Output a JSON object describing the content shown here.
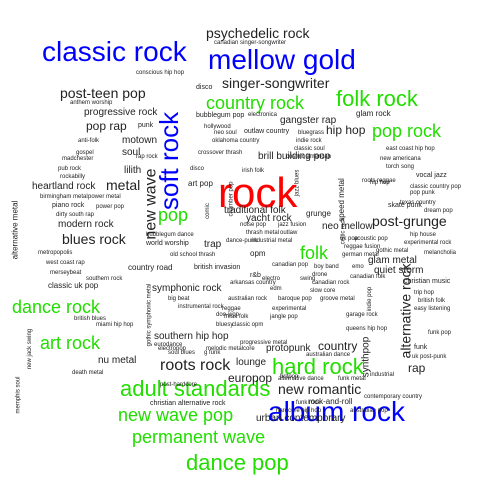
{
  "colors": {
    "dark": "#222222",
    "blue": "#0000ff",
    "green": "#22dd00",
    "red": "#ff0000"
  },
  "words": [
    {
      "text": "rock",
      "size": 12,
      "color": "red"
    },
    {
      "text": "classic rock",
      "size": 11,
      "color": "blue"
    },
    {
      "text": "mellow gold",
      "size": 11,
      "color": "blue"
    },
    {
      "text": "album rock",
      "size": 11,
      "color": "blue"
    },
    {
      "text": "soft rock",
      "size": 10,
      "color": "blue",
      "rot": true
    },
    {
      "text": "folk rock",
      "size": 9,
      "color": "green"
    },
    {
      "text": "country rock",
      "size": 8,
      "color": "green"
    },
    {
      "text": "pop rock",
      "size": 8,
      "color": "green"
    },
    {
      "text": "dance rock",
      "size": 8,
      "color": "green"
    },
    {
      "text": "art rock",
      "size": 8,
      "color": "green"
    },
    {
      "text": "hard rock",
      "size": 9,
      "color": "green"
    },
    {
      "text": "adult standards",
      "size": 9,
      "color": "green"
    },
    {
      "text": "new wave pop",
      "size": 8,
      "color": "green"
    },
    {
      "text": "permanent wave",
      "size": 8,
      "color": "green"
    },
    {
      "text": "dance pop",
      "size": 9,
      "color": "green"
    },
    {
      "text": "pop",
      "size": 8,
      "color": "green"
    },
    {
      "text": "folk",
      "size": 8,
      "color": "green"
    },
    {
      "text": "psychedelic rock",
      "size": 6
    },
    {
      "text": "canadian singer-songwriter",
      "size": 1
    },
    {
      "text": "singer-songwriter",
      "size": 6
    },
    {
      "text": "conscious hip hop",
      "size": 1
    },
    {
      "text": "post-teen pop",
      "size": 6
    },
    {
      "text": "anthem worship",
      "size": 1
    },
    {
      "text": "progressive rock",
      "size": 4
    },
    {
      "text": "pop rap",
      "size": 5
    },
    {
      "text": "punk",
      "size": 2
    },
    {
      "text": "anti-folk",
      "size": 1
    },
    {
      "text": "motown",
      "size": 4
    },
    {
      "text": "gospel",
      "size": 1
    },
    {
      "text": "madchester",
      "size": 1
    },
    {
      "text": "rap rock",
      "size": 1
    },
    {
      "text": "soul",
      "size": 4
    },
    {
      "text": "pub rock",
      "size": 1
    },
    {
      "text": "rockabilly",
      "size": 1
    },
    {
      "text": "lilith",
      "size": 4
    },
    {
      "text": "metal",
      "size": 6
    },
    {
      "text": "heartland rock",
      "size": 4
    },
    {
      "text": "birmingham metal",
      "size": 1
    },
    {
      "text": "power metal",
      "size": 1
    },
    {
      "text": "piano rock",
      "size": 2
    },
    {
      "text": "power pop",
      "size": 1
    },
    {
      "text": "dirty south rap",
      "size": 1
    },
    {
      "text": "modern rock",
      "size": 4
    },
    {
      "text": "blues rock",
      "size": 6
    },
    {
      "text": "alternative metal",
      "size": 3,
      "rot": true
    },
    {
      "text": "new wave",
      "size": 7,
      "rot": true
    },
    {
      "text": "disco",
      "size": 2
    },
    {
      "text": "bubblegum pop",
      "size": 2
    },
    {
      "text": "hollywood",
      "size": 1
    },
    {
      "text": "electronica",
      "size": 1
    },
    {
      "text": "gangster rap",
      "size": 4
    },
    {
      "text": "outlaw country",
      "size": 2
    },
    {
      "text": "bluegrass",
      "size": 1
    },
    {
      "text": "oklahoma country",
      "size": 1
    },
    {
      "text": "indie rock",
      "size": 1
    },
    {
      "text": "classic soul",
      "size": 1
    },
    {
      "text": "neo soul",
      "size": 1
    },
    {
      "text": "glam rock",
      "size": 3
    },
    {
      "text": "hip hop",
      "size": 5
    },
    {
      "text": "east coast hip hop",
      "size": 1
    },
    {
      "text": "cosmic american",
      "size": 1
    },
    {
      "text": "new americana",
      "size": 1
    },
    {
      "text": "torch song",
      "size": 1
    },
    {
      "text": "brill building pop",
      "size": 4
    },
    {
      "text": "crossover thrash",
      "size": 1
    },
    {
      "text": "art pop",
      "size": 3
    },
    {
      "text": "disco",
      "size": 1
    },
    {
      "text": "trap",
      "size": 4
    },
    {
      "text": "traditional folk",
      "size": 4
    },
    {
      "text": "yacht rock",
      "size": 4
    },
    {
      "text": "post-grunge",
      "size": 6
    },
    {
      "text": "neo mellow",
      "size": 4
    },
    {
      "text": "grunge",
      "size": 3
    },
    {
      "text": "hip hop",
      "size": 1
    },
    {
      "text": "vocal jazz",
      "size": 2
    },
    {
      "text": "classic country pop",
      "size": 1
    },
    {
      "text": "dream pop",
      "size": 1
    },
    {
      "text": "pop punk",
      "size": 1
    },
    {
      "text": "roots reggae",
      "size": 1
    },
    {
      "text": "speed metal",
      "size": 3,
      "rot": true
    },
    {
      "text": "skate punk",
      "size": 2
    },
    {
      "text": "glam metal",
      "size": 4
    },
    {
      "text": "quiet storm",
      "size": 4
    },
    {
      "text": "christian music",
      "size": 2
    },
    {
      "text": "trip hop",
      "size": 1
    },
    {
      "text": "british folk",
      "size": 1
    },
    {
      "text": "easy listening",
      "size": 1
    },
    {
      "text": "texas country",
      "size": 1
    },
    {
      "text": "melancholia",
      "size": 1
    },
    {
      "text": "hip house",
      "size": 1
    },
    {
      "text": "experimental rock",
      "size": 1
    },
    {
      "text": "gothic metal",
      "size": 1
    },
    {
      "text": "country road",
      "size": 3
    },
    {
      "text": "classic uk pop",
      "size": 3
    },
    {
      "text": "british invasion",
      "size": 2
    },
    {
      "text": "world worship",
      "size": 2
    },
    {
      "text": "metropopolis",
      "size": 1
    },
    {
      "text": "west coast rap",
      "size": 1
    },
    {
      "text": "merseybeat",
      "size": 1
    },
    {
      "text": "symphonic rock",
      "size": 4
    },
    {
      "text": "big beat",
      "size": 1
    },
    {
      "text": "australian rock",
      "size": 1
    },
    {
      "text": "baroque pop",
      "size": 1
    },
    {
      "text": "groove metal",
      "size": 1
    },
    {
      "text": "garage rock",
      "size": 1
    },
    {
      "text": "british blues",
      "size": 1
    },
    {
      "text": "miami hip hop",
      "size": 1
    },
    {
      "text": "southern hip hop",
      "size": 4
    },
    {
      "text": "nu metal",
      "size": 4
    },
    {
      "text": "electropop",
      "size": 1
    },
    {
      "text": "melodic metalcore",
      "size": 1
    },
    {
      "text": "protopunk",
      "size": 4
    },
    {
      "text": "queens hip hop",
      "size": 1
    },
    {
      "text": "country",
      "size": 5
    },
    {
      "text": "europop",
      "size": 5
    },
    {
      "text": "roots rock",
      "size": 7
    },
    {
      "text": "lounge",
      "size": 4
    },
    {
      "text": "new romantic",
      "size": 6
    },
    {
      "text": "synthpop",
      "size": 4,
      "rot": true
    },
    {
      "text": "alternative rock",
      "size": 6,
      "rot": true
    },
    {
      "text": "rap",
      "size": 5
    },
    {
      "text": "funk",
      "size": 2
    },
    {
      "text": "uk post-punk",
      "size": 1
    },
    {
      "text": "christian alternative rock",
      "size": 2
    },
    {
      "text": "rock-and-roll",
      "size": 3
    },
    {
      "text": "contemporary country",
      "size": 1
    },
    {
      "text": "urban contemporary",
      "size": 4
    },
    {
      "text": "hardcore hip hop",
      "size": 1
    },
    {
      "text": "australian pop",
      "size": 1
    },
    {
      "text": "funk rock",
      "size": 1
    },
    {
      "text": "alternative dance",
      "size": 1
    },
    {
      "text": "funk metal",
      "size": 1
    },
    {
      "text": "death metal",
      "size": 1
    },
    {
      "text": "new jack swing",
      "size": 1,
      "rot": true
    },
    {
      "text": "memphis soul",
      "size": 1,
      "rot": true
    },
    {
      "text": "post-hardcore",
      "size": 1
    },
    {
      "text": "industrial",
      "size": 1
    },
    {
      "text": "jazz blues",
      "size": 1,
      "rot": true
    },
    {
      "text": "celtic rock",
      "size": 1,
      "rot": true
    },
    {
      "text": "acoustic pop",
      "size": 1
    },
    {
      "text": "uk pop",
      "size": 1
    },
    {
      "text": "boy band",
      "size": 1
    },
    {
      "text": "emo",
      "size": 1
    },
    {
      "text": "canadian folk",
      "size": 1
    },
    {
      "text": "reggae fusion",
      "size": 1
    },
    {
      "text": "german metal",
      "size": 1
    },
    {
      "text": "drone",
      "size": 1
    },
    {
      "text": "canadian rock",
      "size": 1
    },
    {
      "text": "swing",
      "size": 1
    },
    {
      "text": "slow core",
      "size": 1
    },
    {
      "text": "electro",
      "size": 1
    },
    {
      "text": "chamber pop",
      "size": 1,
      "rot": true
    },
    {
      "text": "opm",
      "size": 3
    },
    {
      "text": "r&b",
      "size": 2
    },
    {
      "text": "edm",
      "size": 1
    },
    {
      "text": "indie pop",
      "size": 1,
      "rot": true
    },
    {
      "text": "bluesy",
      "size": 1
    },
    {
      "text": "doo-wop",
      "size": 1
    },
    {
      "text": "g funk",
      "size": 1
    },
    {
      "text": "britpop",
      "size": 1
    },
    {
      "text": "eurodance",
      "size": 1
    },
    {
      "text": "soul blues",
      "size": 1
    },
    {
      "text": "progressive metal",
      "size": 1
    },
    {
      "text": "australian dance",
      "size": 1
    },
    {
      "text": "funk pop",
      "size": 1
    },
    {
      "text": "gothic symphonic metal",
      "size": 1,
      "rot": true
    },
    {
      "text": "thrash metal",
      "size": 1
    },
    {
      "text": "industrial metal",
      "size": 1
    },
    {
      "text": "noise pop",
      "size": 1
    },
    {
      "text": "comic",
      "size": 1,
      "rot": true
    },
    {
      "text": "jazz fusion",
      "size": 1
    },
    {
      "text": "outlaw",
      "size": 1
    },
    {
      "text": "irish folk",
      "size": 1
    },
    {
      "text": "dance-punk",
      "size": 1
    },
    {
      "text": "bubblegum dance",
      "size": 1
    },
    {
      "text": "old school thrash",
      "size": 1
    },
    {
      "text": "canadian pop",
      "size": 1
    },
    {
      "text": "southern rock",
      "size": 1
    },
    {
      "text": "arkansas country",
      "size": 1
    },
    {
      "text": "experimental",
      "size": 1
    },
    {
      "text": "jangle pop",
      "size": 1
    },
    {
      "text": "instrumental rock",
      "size": 1
    },
    {
      "text": "reggae",
      "size": 1
    },
    {
      "text": "freak folk",
      "size": 1
    },
    {
      "text": "classic opm",
      "size": 1
    }
  ]
}
